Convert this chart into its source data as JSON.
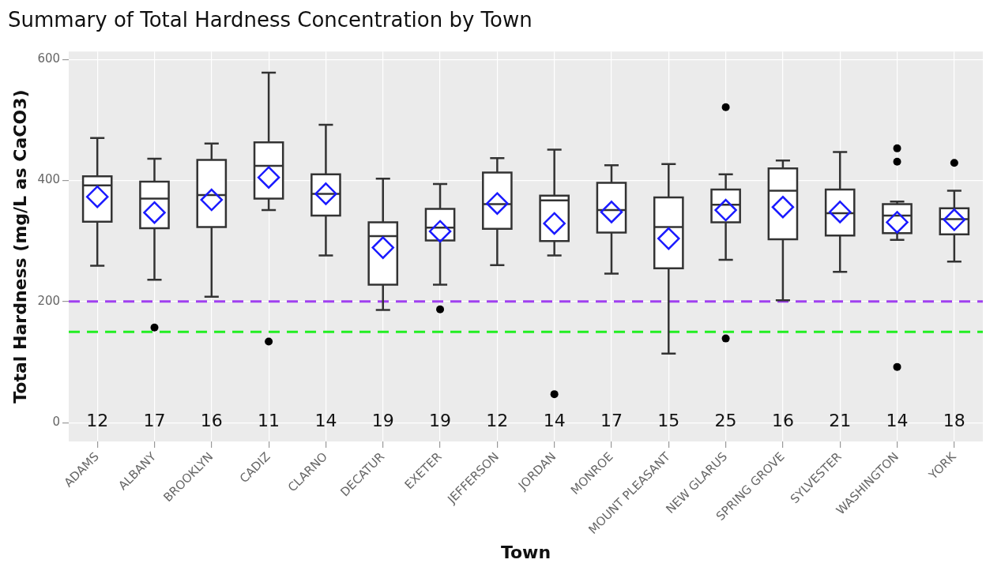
{
  "chart_data": {
    "type": "box",
    "title": "Summary of Total Hardness Concentration by Town",
    "xlabel": "Town",
    "ylabel": "Total Hardness (mg/L as CaCO3)",
    "categories": [
      "ADAMS",
      "ALBANY",
      "BROOKLYN",
      "CADIZ",
      "CLARNO",
      "DECATUR",
      "EXETER",
      "JEFFERSON",
      "JORDAN",
      "MONROE",
      "MOUNT PLEASANT",
      "NEW GLARUS",
      "SPRING GROVE",
      "SYLVESTER",
      "WASHINGTON",
      "YORK"
    ],
    "series": [
      {
        "color": "#333333",
        "boxes": [
          {
            "low": 259,
            "q1": 332,
            "median": 392,
            "q3": 407,
            "high": 470,
            "mean": 373
          },
          {
            "low": 236,
            "q1": 321,
            "median": 370,
            "q3": 398,
            "high": 436,
            "mean": 347,
            "outliers": [
              157
            ]
          },
          {
            "low": 208,
            "q1": 323,
            "median": 376,
            "q3": 434,
            "high": 461,
            "mean": 368
          },
          {
            "low": 351,
            "q1": 370,
            "median": 424,
            "q3": 463,
            "high": 578,
            "mean": 405,
            "outliers": [
              134
            ]
          },
          {
            "low": 276,
            "q1": 342,
            "median": 378,
            "q3": 410,
            "high": 492,
            "mean": 378
          },
          {
            "low": 186,
            "q1": 228,
            "median": 308,
            "q3": 331,
            "high": 403,
            "mean": 289
          },
          {
            "low": 228,
            "q1": 301,
            "median": 322,
            "q3": 353,
            "high": 394,
            "mean": 316,
            "outliers": [
              187
            ]
          },
          {
            "low": 260,
            "q1": 320,
            "median": 361,
            "q3": 413,
            "high": 437,
            "mean": 362
          },
          {
            "low": 276,
            "q1": 300,
            "median": 367,
            "q3": 375,
            "high": 451,
            "mean": 329,
            "outliers": [
              47
            ]
          },
          {
            "low": 246,
            "q1": 314,
            "median": 351,
            "q3": 396,
            "high": 425,
            "mean": 348
          },
          {
            "low": 114,
            "q1": 255,
            "median": 323,
            "q3": 372,
            "high": 427,
            "mean": 304
          },
          {
            "low": 269,
            "q1": 331,
            "median": 360,
            "q3": 385,
            "high": 410,
            "mean": 351,
            "outliers": [
              521,
              139
            ]
          },
          {
            "low": 202,
            "q1": 303,
            "median": 383,
            "q3": 420,
            "high": 433,
            "mean": 356
          },
          {
            "low": 249,
            "q1": 309,
            "median": 346,
            "q3": 385,
            "high": 447,
            "mean": 348
          },
          {
            "low": 302,
            "q1": 313,
            "median": 342,
            "q3": 361,
            "high": 365,
            "mean": 331,
            "outliers": [
              453,
              431,
              92
            ]
          },
          {
            "low": 266,
            "q1": 311,
            "median": 336,
            "q3": 354,
            "high": 383,
            "mean": 335,
            "outliers": [
              429
            ]
          }
        ]
      }
    ],
    "ylim": [
      -31,
      613
    ],
    "yticks": [
      0,
      200,
      400,
      600
    ],
    "grid": true,
    "ref_lines": [
      {
        "axis": "y",
        "value": 200,
        "color": "#a040f0",
        "line_style": "dashed"
      },
      {
        "axis": "y",
        "value": 150,
        "color": "#22ee22",
        "line_style": "dashed"
      }
    ],
    "annotations": [
      "12",
      "17",
      "16",
      "11",
      "14",
      "19",
      "19",
      "12",
      "14",
      "17",
      "15",
      "25",
      "16",
      "21",
      "14",
      "18"
    ]
  }
}
